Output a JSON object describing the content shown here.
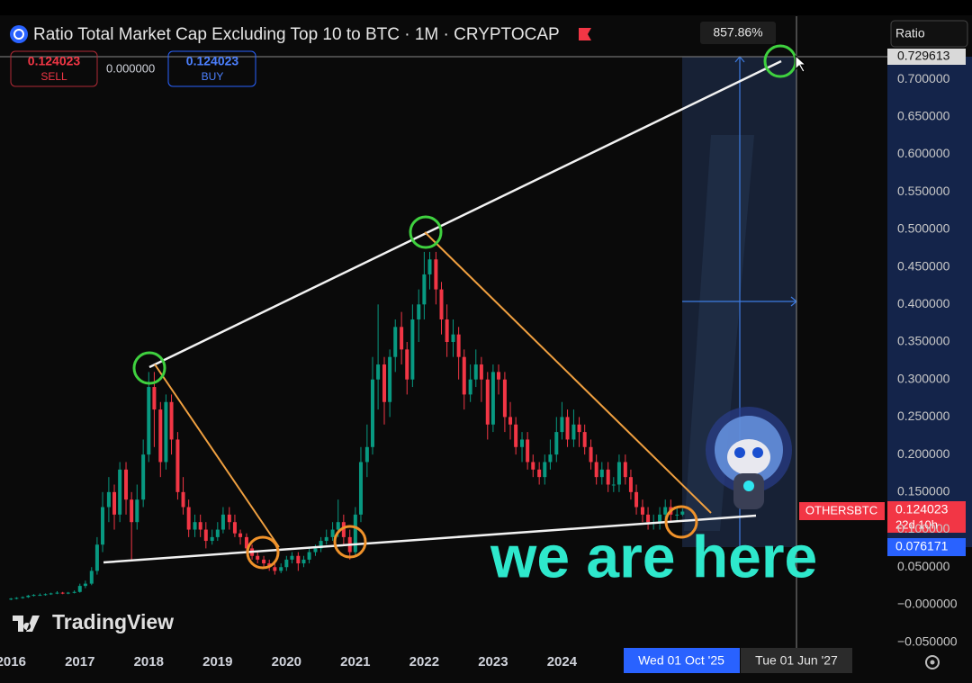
{
  "header": {
    "title": "Ratio Total Market Cap Excluding Top 10 to BTC · 1M · CRYPTOCAP",
    "sell_price": 0.124023,
    "sell_label": "SELL",
    "spread": "0.000000",
    "buy_price": 0.124023,
    "buy_label": "BUY",
    "measure": "857.86%",
    "scale_button": "Ratio"
  },
  "badges": {
    "crosshair_price": 0.729613,
    "symbol": "OTHERSBTC",
    "last_price": 0.124023,
    "countdown": "22d 10h",
    "level": 0.076171,
    "date_cursor": "Wed 01 Oct '25",
    "date_crosshair": "Tue 01 Jun '27"
  },
  "annotation": "we are here",
  "logo": "TradingView",
  "chart_data": {
    "type": "candlestick",
    "up_color": "#089981",
    "down_color": "#f23645",
    "grid": false,
    "xlim": [
      2015.84,
      2028.72
    ],
    "ylim": [
      -0.06,
      0.784
    ],
    "xticks": [
      2016,
      2017,
      2018,
      2019,
      2020,
      2021,
      2022,
      2023,
      2024
    ],
    "yticks": [
      {
        "value": 0.7,
        "label": "0.700000"
      },
      {
        "value": 0.65,
        "label": "0.650000"
      },
      {
        "value": 0.6,
        "label": "0.600000"
      },
      {
        "value": 0.55,
        "label": "0.550000"
      },
      {
        "value": 0.5,
        "label": "0.500000"
      },
      {
        "value": 0.45,
        "label": "0.450000"
      },
      {
        "value": 0.4,
        "label": "0.400000"
      },
      {
        "value": 0.35,
        "label": "0.350000"
      },
      {
        "value": 0.3,
        "label": "0.300000"
      },
      {
        "value": 0.25,
        "label": "0.250000"
      },
      {
        "value": 0.2,
        "label": "0.200000"
      },
      {
        "value": 0.15,
        "label": "0.150000"
      },
      {
        "value": 0.1,
        "label": "0.100000"
      },
      {
        "value": 0.05,
        "label": "0.050000"
      },
      {
        "value": 0,
        "label": "−0.000000"
      },
      {
        "value": -0.05,
        "label": "−0.050000"
      }
    ],
    "x": [
      2016,
      2016.08,
      2016.17,
      2016.25,
      2016.33,
      2016.42,
      2016.5,
      2016.58,
      2016.67,
      2016.75,
      2016.83,
      2016.92,
      2017,
      2017.08,
      2017.17,
      2017.25,
      2017.33,
      2017.42,
      2017.5,
      2017.58,
      2017.67,
      2017.75,
      2017.83,
      2017.92,
      2018,
      2018.08,
      2018.17,
      2018.25,
      2018.33,
      2018.42,
      2018.5,
      2018.58,
      2018.67,
      2018.75,
      2018.83,
      2018.92,
      2019,
      2019.08,
      2019.17,
      2019.25,
      2019.33,
      2019.42,
      2019.5,
      2019.58,
      2019.67,
      2019.75,
      2019.83,
      2019.92,
      2020,
      2020.08,
      2020.17,
      2020.25,
      2020.33,
      2020.42,
      2020.5,
      2020.58,
      2020.67,
      2020.75,
      2020.83,
      2020.92,
      2021,
      2021.08,
      2021.17,
      2021.25,
      2021.33,
      2021.42,
      2021.5,
      2021.58,
      2021.67,
      2021.75,
      2021.83,
      2021.92,
      2022,
      2022.08,
      2022.17,
      2022.25,
      2022.33,
      2022.42,
      2022.5,
      2022.58,
      2022.67,
      2022.75,
      2022.83,
      2022.92,
      2023,
      2023.08,
      2023.17,
      2023.25,
      2023.33,
      2023.42,
      2023.5,
      2023.58,
      2023.67,
      2023.75,
      2023.83,
      2023.92,
      2024,
      2024.08,
      2024.17,
      2024.25,
      2024.33,
      2024.42,
      2024.5,
      2024.58,
      2024.67,
      2024.75,
      2024.83,
      2024.92,
      2025,
      2025.08,
      2025.17,
      2025.25,
      2025.33,
      2025.42,
      2025.5,
      2025.58,
      2025.67,
      2025.75
    ],
    "open": [
      0.007,
      0.008,
      0.009,
      0.01,
      0.012,
      0.013,
      0.013,
      0.014,
      0.015,
      0.016,
      0.015,
      0.016,
      0.017,
      0.025,
      0.028,
      0.045,
      0.08,
      0.13,
      0.15,
      0.12,
      0.18,
      0.14,
      0.11,
      0.14,
      0.2,
      0.29,
      0.26,
      0.19,
      0.27,
      0.22,
      0.15,
      0.13,
      0.1,
      0.11,
      0.1,
      0.085,
      0.09,
      0.1,
      0.12,
      0.11,
      0.095,
      0.09,
      0.075,
      0.065,
      0.06,
      0.055,
      0.05,
      0.045,
      0.05,
      0.06,
      0.065,
      0.055,
      0.06,
      0.07,
      0.075,
      0.085,
      0.09,
      0.1,
      0.11,
      0.09,
      0.07,
      0.12,
      0.19,
      0.21,
      0.3,
      0.32,
      0.27,
      0.33,
      0.37,
      0.34,
      0.3,
      0.38,
      0.4,
      0.44,
      0.46,
      0.42,
      0.38,
      0.35,
      0.36,
      0.33,
      0.28,
      0.3,
      0.32,
      0.3,
      0.24,
      0.31,
      0.3,
      0.25,
      0.24,
      0.21,
      0.22,
      0.19,
      0.18,
      0.17,
      0.19,
      0.2,
      0.23,
      0.25,
      0.22,
      0.24,
      0.23,
      0.21,
      0.19,
      0.17,
      0.18,
      0.16,
      0.16,
      0.19,
      0.17,
      0.15,
      0.13,
      0.12,
      0.11,
      0.11,
      0.12,
      0.13,
      0.12,
      0.12
    ],
    "high": [
      0.009,
      0.01,
      0.011,
      0.013,
      0.014,
      0.015,
      0.015,
      0.016,
      0.018,
      0.017,
      0.017,
      0.019,
      0.028,
      0.032,
      0.05,
      0.09,
      0.15,
      0.17,
      0.16,
      0.19,
      0.19,
      0.15,
      0.16,
      0.22,
      0.31,
      0.31,
      0.27,
      0.28,
      0.28,
      0.23,
      0.17,
      0.14,
      0.12,
      0.12,
      0.11,
      0.1,
      0.11,
      0.13,
      0.13,
      0.12,
      0.1,
      0.095,
      0.08,
      0.07,
      0.065,
      0.06,
      0.055,
      0.055,
      0.065,
      0.07,
      0.07,
      0.065,
      0.075,
      0.08,
      0.09,
      0.1,
      0.11,
      0.14,
      0.12,
      0.1,
      0.13,
      0.21,
      0.24,
      0.33,
      0.4,
      0.33,
      0.34,
      0.38,
      0.39,
      0.35,
      0.4,
      0.42,
      0.47,
      0.47,
      0.47,
      0.43,
      0.4,
      0.38,
      0.37,
      0.34,
      0.32,
      0.34,
      0.33,
      0.31,
      0.32,
      0.32,
      0.31,
      0.27,
      0.25,
      0.23,
      0.23,
      0.2,
      0.19,
      0.2,
      0.22,
      0.25,
      0.27,
      0.26,
      0.26,
      0.25,
      0.24,
      0.22,
      0.2,
      0.19,
      0.19,
      0.17,
      0.2,
      0.2,
      0.18,
      0.16,
      0.14,
      0.13,
      0.12,
      0.13,
      0.14,
      0.14,
      0.13,
      0.128
    ],
    "low": [
      0.006,
      0.007,
      0.008,
      0.009,
      0.011,
      0.012,
      0.012,
      0.013,
      0.014,
      0.014,
      0.014,
      0.015,
      0.016,
      0.022,
      0.026,
      0.04,
      0.07,
      0.11,
      0.1,
      0.11,
      0.12,
      0.06,
      0.1,
      0.13,
      0.19,
      0.21,
      0.17,
      0.18,
      0.2,
      0.14,
      0.12,
      0.09,
      0.09,
      0.09,
      0.075,
      0.08,
      0.085,
      0.095,
      0.1,
      0.09,
      0.08,
      0.07,
      0.06,
      0.055,
      0.05,
      0.045,
      0.04,
      0.042,
      0.045,
      0.055,
      0.045,
      0.05,
      0.055,
      0.065,
      0.07,
      0.08,
      0.085,
      0.09,
      0.08,
      0.06,
      0.065,
      0.11,
      0.17,
      0.2,
      0.26,
      0.24,
      0.25,
      0.31,
      0.32,
      0.28,
      0.29,
      0.35,
      0.38,
      0.42,
      0.4,
      0.36,
      0.33,
      0.33,
      0.3,
      0.26,
      0.27,
      0.29,
      0.27,
      0.22,
      0.23,
      0.28,
      0.23,
      0.22,
      0.2,
      0.19,
      0.18,
      0.17,
      0.16,
      0.16,
      0.18,
      0.19,
      0.22,
      0.21,
      0.21,
      0.21,
      0.2,
      0.18,
      0.16,
      0.16,
      0.15,
      0.15,
      0.15,
      0.16,
      0.14,
      0.12,
      0.11,
      0.1,
      0.1,
      0.1,
      0.11,
      0.11,
      0.11,
      0.118
    ],
    "close": [
      0.008,
      0.009,
      0.01,
      0.012,
      0.013,
      0.013,
      0.014,
      0.015,
      0.016,
      0.015,
      0.016,
      0.017,
      0.025,
      0.028,
      0.045,
      0.08,
      0.13,
      0.15,
      0.12,
      0.18,
      0.14,
      0.11,
      0.14,
      0.2,
      0.29,
      0.26,
      0.19,
      0.27,
      0.22,
      0.15,
      0.13,
      0.1,
      0.11,
      0.1,
      0.085,
      0.09,
      0.1,
      0.12,
      0.11,
      0.095,
      0.09,
      0.075,
      0.065,
      0.06,
      0.055,
      0.05,
      0.045,
      0.05,
      0.06,
      0.065,
      0.055,
      0.06,
      0.07,
      0.075,
      0.085,
      0.09,
      0.1,
      0.11,
      0.09,
      0.07,
      0.12,
      0.19,
      0.21,
      0.3,
      0.32,
      0.27,
      0.33,
      0.37,
      0.34,
      0.3,
      0.38,
      0.4,
      0.44,
      0.46,
      0.42,
      0.38,
      0.35,
      0.36,
      0.33,
      0.28,
      0.3,
      0.32,
      0.3,
      0.24,
      0.31,
      0.3,
      0.25,
      0.24,
      0.21,
      0.22,
      0.19,
      0.18,
      0.17,
      0.19,
      0.2,
      0.23,
      0.25,
      0.22,
      0.24,
      0.23,
      0.21,
      0.19,
      0.17,
      0.18,
      0.16,
      0.16,
      0.19,
      0.17,
      0.15,
      0.13,
      0.12,
      0.11,
      0.11,
      0.12,
      0.13,
      0.12,
      0.12,
      0.124023
    ]
  }
}
